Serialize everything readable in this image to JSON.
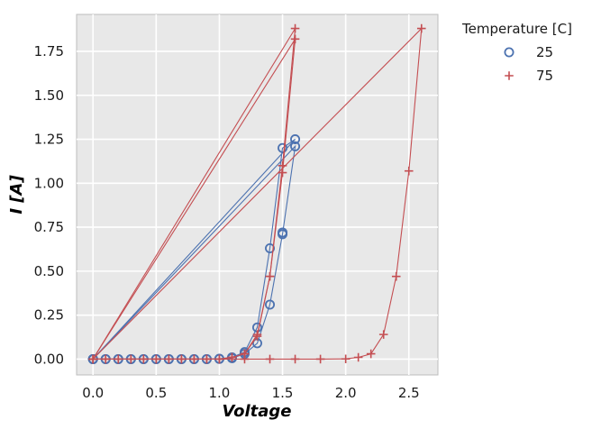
{
  "chart_data": {
    "type": "scatter",
    "xlabel": "Voltage",
    "ylabel": "I [A]",
    "xlim": [
      -0.13,
      2.73
    ],
    "ylim": [
      -0.09,
      1.96
    ],
    "x_ticks": [
      0.0,
      0.5,
      1.0,
      1.5,
      2.0,
      2.5
    ],
    "x_tick_labels": [
      "0.0",
      "0.5",
      "1.0",
      "1.5",
      "2.0",
      "2.5"
    ],
    "y_ticks": [
      0.0,
      0.25,
      0.5,
      0.75,
      1.0,
      1.25,
      1.5,
      1.75
    ],
    "y_tick_labels": [
      "0.00",
      "0.25",
      "0.50",
      "0.75",
      "1.00",
      "1.25",
      "1.50",
      "1.75"
    ],
    "grid": true,
    "legend_position": "outside-top-right",
    "legend_title": "Temperature [C]",
    "series": [
      {
        "name": "25",
        "marker": "circle",
        "color": "#4c72b0",
        "sweeps": [
          {
            "x": [
              0.0,
              0.1,
              0.2,
              0.3,
              0.4,
              0.5,
              0.6,
              0.7,
              0.8,
              0.9,
              1.0,
              1.1,
              1.2,
              1.3,
              1.4,
              1.5,
              1.6,
              0.0
            ],
            "y": [
              0.0,
              0.0,
              0.0,
              0.0,
              0.0,
              0.0,
              0.0,
              0.0,
              0.0,
              0.0,
              0.001,
              0.005,
              0.03,
              0.09,
              0.31,
              0.71,
              1.21,
              0.0
            ]
          },
          {
            "x": [
              0.0,
              0.1,
              0.2,
              0.3,
              0.4,
              0.5,
              0.6,
              0.7,
              0.8,
              0.9,
              1.0,
              1.1,
              1.2,
              1.3,
              1.4,
              1.5,
              1.6,
              0.0
            ],
            "y": [
              0.0,
              0.0,
              0.0,
              0.0,
              0.0,
              0.0,
              0.0,
              0.0,
              0.0,
              0.0,
              0.002,
              0.01,
              0.04,
              0.18,
              0.63,
              1.2,
              1.25,
              0.0
            ]
          },
          {
            "x": [
              1.5
            ],
            "y": [
              0.72
            ]
          }
        ]
      },
      {
        "name": "75",
        "marker": "plus",
        "color": "#c44e52",
        "sweeps": [
          {
            "x": [
              0.0,
              0.1,
              0.2,
              0.3,
              0.4,
              0.5,
              0.6,
              0.7,
              0.8,
              0.9,
              1.0,
              1.1,
              1.2,
              1.3,
              1.4,
              1.5,
              1.6,
              0.0
            ],
            "y": [
              0.0,
              0.0,
              0.0,
              0.0,
              0.0,
              0.0,
              0.0,
              0.0,
              0.0,
              0.0,
              0.0,
              0.01,
              0.03,
              0.14,
              0.47,
              1.06,
              1.82,
              0.0
            ]
          },
          {
            "x": [
              0.0,
              0.1,
              0.2,
              0.3,
              0.4,
              0.5,
              0.6,
              0.7,
              0.8,
              0.9,
              1.0,
              1.1,
              1.2,
              1.3,
              1.4,
              1.5,
              1.6,
              0.0
            ],
            "y": [
              0.0,
              0.0,
              0.0,
              0.0,
              0.0,
              0.0,
              0.0,
              0.0,
              0.0,
              0.0,
              0.0,
              0.01,
              0.03,
              0.13,
              0.47,
              1.1,
              1.88,
              0.0
            ]
          },
          {
            "x": [
              0.0,
              1.2,
              1.4,
              1.6,
              1.8,
              2.0,
              2.1,
              2.2,
              2.3,
              2.4,
              2.5,
              2.6,
              0.0
            ],
            "y": [
              0.0,
              0.0,
              0.0,
              0.0,
              0.0,
              0.001,
              0.01,
              0.03,
              0.14,
              0.47,
              1.07,
              1.88,
              0.0
            ]
          }
        ]
      }
    ]
  }
}
